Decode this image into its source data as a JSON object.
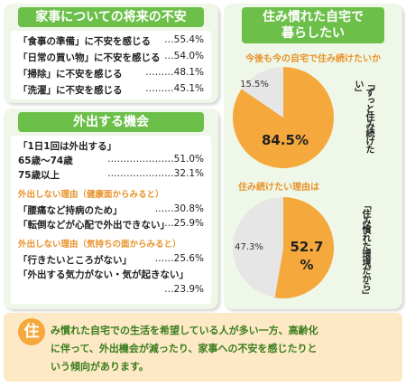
{
  "left_top": {
    "title": "家事についての将来の不安",
    "rows": [
      {
        "label": "「食事の準備」に不安を感じる",
        "value": "…55.4%"
      },
      {
        "label": "「日常の買い物」に不安を感じる",
        "value": "…54.0%"
      },
      {
        "label": "「掃除」に不安を感じる",
        "value": "………48.1%"
      },
      {
        "label": "「洗濯」に不安を感じる",
        "value": "………45.1%"
      }
    ]
  },
  "left_bottom": {
    "title": "外出する機会",
    "rows": [
      {
        "label": "「1日1回は外出する」",
        "value": ""
      },
      {
        "label": "65歳〜74歳",
        "value": "…………………51.0%"
      },
      {
        "label": "75歳以上",
        "value": "…………………32.1%"
      }
    ],
    "sub1": "外出しない理由（健康面からみると）",
    "rows2": [
      {
        "label": "「腰痛など持病のため」",
        "value": "……30.8%"
      },
      {
        "label": "「転倒などが心配で外出できない」",
        "value": "…25.9%"
      }
    ],
    "sub2": "外出しない理由（気持ちの面からみると）",
    "rows3": [
      {
        "label": "「行きたいところがない」",
        "value": "……25.6%"
      },
      {
        "label": "「外出する気力がない・気が起きない」",
        "value": ""
      },
      {
        "label": "",
        "value": "…23.9%"
      }
    ]
  },
  "right": {
    "title_line1": "住み慣れた自宅で",
    "title_line2": "暮らしたい"
  },
  "chart_data": [
    {
      "type": "pie",
      "title": "今後も今の自宅で住み続けたいか",
      "slices": [
        {
          "label": "「ずっと住み続けたい」",
          "value": 84.5,
          "color": "#f5a83c"
        },
        {
          "label": "",
          "value": 15.5,
          "color": "#e6e6e6"
        }
      ],
      "labels": {
        "big": "84.5%",
        "small": "15.5%"
      }
    },
    {
      "type": "pie",
      "title": "住み続けたい理由は",
      "slices": [
        {
          "label": "「住み慣れた環境だから」",
          "value": 52.7,
          "color": "#f5a83c"
        },
        {
          "label": "",
          "value": 47.3,
          "color": "#e6e6e6"
        }
      ],
      "labels": {
        "big1": "52.7",
        "big2": "%",
        "small": "47.3%"
      }
    }
  ],
  "footer": {
    "badge": "住",
    "text_line1": "み慣れた自宅での生活を希望している人が多い一方、高齢化",
    "text_line2": "に伴って、外出機会が減ったり、家事への不安を感じたりと",
    "text_line3": "いう傾向があります。"
  },
  "colors": {
    "green": "#6cc04a",
    "panel": "#eff8e8",
    "orange": "#f5a83c",
    "gray": "#e6e6e6",
    "footer_bg": "#fde9c6"
  }
}
